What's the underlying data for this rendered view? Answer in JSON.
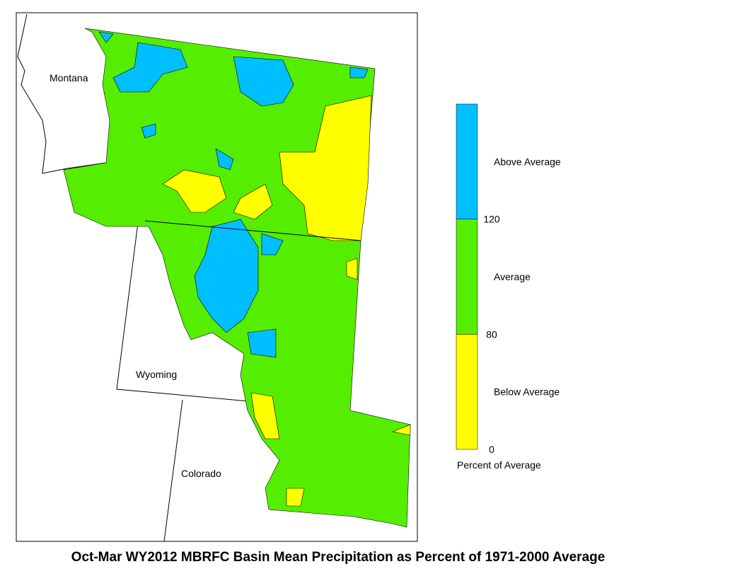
{
  "map": {
    "labels": [
      "Montana",
      "Wyoming",
      "Colorado"
    ]
  },
  "legend": {
    "title": "Percent of Average",
    "classes": [
      {
        "label": "Below Average",
        "color": "#ffff00"
      },
      {
        "label": "Average",
        "color": "#55ee00"
      },
      {
        "label": "Above Average",
        "color": "#00bfff"
      }
    ],
    "ticks": [
      0,
      80,
      120
    ]
  },
  "title": "Oct-Mar WY2012 MBRFC Basin Mean Precipitation as Percent of 1971-2000 Average"
}
